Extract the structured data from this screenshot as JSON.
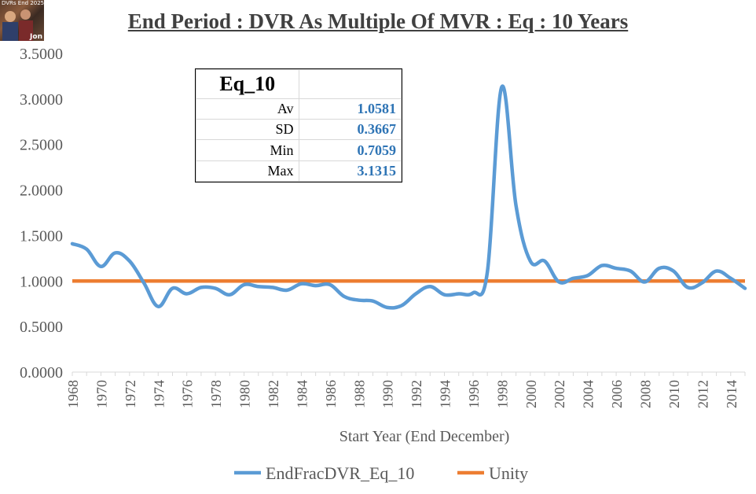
{
  "header": {
    "title": "End Period : DVR As Multiple Of MVR : Eq : 10 Years"
  },
  "thumbnail": {
    "caption_top": "DVRs End 2025",
    "caption_bottom": "Jon"
  },
  "stats_box": {
    "heading": "Eq_10",
    "rows": [
      {
        "label": "Av",
        "value": "1.0581"
      },
      {
        "label": "SD",
        "value": "0.3667"
      },
      {
        "label": "Min",
        "value": "0.7059"
      },
      {
        "label": "Max",
        "value": "3.1315"
      }
    ]
  },
  "colors": {
    "series_blue": "#5b9bd5",
    "series_orange": "#ed7d31",
    "value_blue": "#2e74b5",
    "text": "#404040"
  },
  "chart_data": {
    "type": "line",
    "title": "End Period : DVR As Multiple Of MVR : Eq : 10 Years",
    "xlabel": "Start Year (End December)",
    "ylabel": "",
    "ylim": [
      0,
      3.5
    ],
    "yticks": [
      "0.0000",
      "0.5000",
      "1.0000",
      "1.5000",
      "2.0000",
      "2.5000",
      "3.0000",
      "3.5000"
    ],
    "xlim": [
      1968,
      2015
    ],
    "xticks": [
      "1968",
      "1970",
      "1972",
      "1974",
      "1976",
      "1978",
      "1980",
      "1982",
      "1984",
      "1986",
      "1988",
      "1990",
      "1992",
      "1994",
      "1996",
      "1998",
      "2000",
      "2002",
      "2004",
      "2006",
      "2008",
      "2010",
      "2012",
      "2014"
    ],
    "grid": false,
    "legend_position": "bottom",
    "x": [
      1968,
      1969,
      1970,
      1971,
      1972,
      1973,
      1974,
      1975,
      1976,
      1977,
      1978,
      1979,
      1980,
      1981,
      1982,
      1983,
      1984,
      1985,
      1986,
      1987,
      1988,
      1989,
      1990,
      1991,
      1992,
      1993,
      1994,
      1995,
      1996,
      1997,
      1998,
      1999,
      2000,
      2001,
      2002,
      2003,
      2004,
      2005,
      2006,
      2007,
      2008,
      2009,
      2010,
      2011,
      2012,
      2013,
      2014,
      2015
    ],
    "series": [
      {
        "name": "EndFracDVR_Eq_10",
        "color": "#5b9bd5",
        "values": [
          1.41,
          1.35,
          1.16,
          1.31,
          1.22,
          0.98,
          0.72,
          0.92,
          0.86,
          0.93,
          0.92,
          0.85,
          0.96,
          0.94,
          0.93,
          0.9,
          0.97,
          0.95,
          0.96,
          0.83,
          0.79,
          0.78,
          0.71,
          0.73,
          0.86,
          0.94,
          0.85,
          0.86,
          0.87,
          1.1,
          3.13,
          1.83,
          1.22,
          1.22,
          0.99,
          1.03,
          1.06,
          1.17,
          1.14,
          1.11,
          0.99,
          1.14,
          1.11,
          0.93,
          0.98,
          1.11,
          1.03,
          0.92
        ]
      },
      {
        "name": "Unity",
        "color": "#ed7d31",
        "values": [
          1,
          1,
          1,
          1,
          1,
          1,
          1,
          1,
          1,
          1,
          1,
          1,
          1,
          1,
          1,
          1,
          1,
          1,
          1,
          1,
          1,
          1,
          1,
          1,
          1,
          1,
          1,
          1,
          1,
          1,
          1,
          1,
          1,
          1,
          1,
          1,
          1,
          1,
          1,
          1,
          1,
          1,
          1,
          1,
          1,
          1,
          1,
          1
        ]
      }
    ]
  }
}
